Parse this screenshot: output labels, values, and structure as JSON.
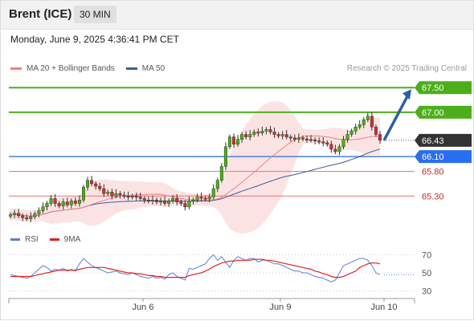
{
  "header": {
    "instrument": "Brent (ICE)",
    "timeframe": "30 MIN"
  },
  "datetime": "Monday, June 9, 2025 4:36:41 PM CET",
  "legend": {
    "ma20": {
      "label": "MA 20 + Bollinger Bands",
      "color": "#f08080"
    },
    "ma50": {
      "label": "MA 50",
      "color": "#3a5f9a"
    }
  },
  "credit": "Research © 2025 Trading Central",
  "rsi_legend": {
    "rsi": {
      "label": "RSI",
      "color": "#5b7fd6"
    },
    "ma9": {
      "label": "9MA",
      "color": "#e02020"
    }
  },
  "chart_data": [
    {
      "type": "candlestick",
      "title": "Brent (ICE)",
      "x_ticks": [
        "Jun 6",
        "Jun 9",
        "Jun 10"
      ],
      "price_levels": [
        {
          "value": 67.5,
          "label": "67.50",
          "kind": "resistance"
        },
        {
          "value": 67.0,
          "label": "67.00",
          "kind": "resistance"
        },
        {
          "value": 66.43,
          "label": "66.43",
          "kind": "current"
        },
        {
          "value": 66.1,
          "label": "66.10",
          "kind": "pivot"
        },
        {
          "value": 65.8,
          "label": "65.80",
          "kind": "support"
        },
        {
          "value": 65.3,
          "label": "65.30",
          "kind": "support"
        }
      ],
      "ylim": [
        64.8,
        67.65
      ],
      "close_path": [
        64.92,
        64.95,
        64.9,
        64.86,
        64.84,
        64.88,
        64.94,
        65.0,
        65.08,
        65.15,
        65.25,
        65.15,
        65.1,
        65.18,
        65.12,
        65.2,
        65.15,
        65.22,
        65.48,
        65.62,
        65.55,
        65.5,
        65.45,
        65.35,
        65.38,
        65.3,
        65.35,
        65.32,
        65.3,
        65.28,
        65.3,
        65.28,
        65.25,
        65.22,
        65.2,
        65.22,
        65.18,
        65.2,
        65.15,
        65.2,
        65.25,
        65.18,
        65.15,
        65.08,
        65.2,
        65.22,
        65.28,
        65.26,
        65.24,
        65.28,
        65.45,
        65.62,
        65.9,
        66.3,
        66.5,
        66.35,
        66.45,
        66.55,
        66.5,
        66.55,
        66.6,
        66.58,
        66.62,
        66.65,
        66.6,
        66.55,
        66.52,
        66.55,
        66.5,
        66.48,
        66.45,
        66.48,
        66.46,
        66.45,
        66.44,
        66.42,
        66.4,
        66.38,
        66.35,
        66.25,
        66.2,
        66.3,
        66.45,
        66.55,
        66.62,
        66.7,
        66.75,
        66.85,
        66.92,
        66.7,
        66.55,
        66.43
      ],
      "projection": {
        "from": 66.43,
        "to": 67.5
      }
    },
    {
      "type": "line",
      "title": "RSI",
      "ylim": [
        25,
        75
      ],
      "y_ticks": [
        70,
        50,
        30
      ],
      "series": [
        {
          "name": "RSI",
          "values": [
            48,
            47,
            46,
            45,
            44,
            46,
            50,
            54,
            58,
            56,
            52,
            54,
            53,
            55,
            52,
            54,
            52,
            60,
            66,
            62,
            58,
            56,
            54,
            52,
            50,
            51,
            52,
            50,
            49,
            48,
            50,
            48,
            46,
            45,
            44,
            46,
            44,
            45,
            43,
            48,
            50,
            46,
            44,
            42,
            55,
            54,
            56,
            58,
            60,
            66,
            70,
            64,
            68,
            62,
            56,
            64,
            68,
            66,
            64,
            66,
            66,
            62,
            64,
            64,
            62,
            60,
            60,
            58,
            56,
            54,
            52,
            52,
            50,
            50,
            48,
            46,
            45,
            44,
            42,
            40,
            42,
            50,
            58,
            60,
            62,
            64,
            66,
            66,
            64,
            58,
            50,
            48
          ]
        },
        {
          "name": "9MA",
          "values": [
            46,
            46,
            46,
            46,
            46,
            46,
            47,
            48,
            49,
            50,
            51,
            52,
            53,
            53,
            53,
            53,
            53,
            54,
            55,
            56,
            56,
            56,
            56,
            56,
            55,
            54,
            53,
            52,
            51,
            50,
            50,
            49,
            49,
            48,
            47,
            47,
            46,
            46,
            45,
            45,
            45,
            45,
            45,
            45,
            47,
            48,
            49,
            50,
            52,
            54,
            57,
            59,
            61,
            62,
            63,
            63,
            64,
            64,
            64,
            64,
            65,
            65,
            65,
            64,
            64,
            63,
            62,
            61,
            60,
            59,
            58,
            57,
            56,
            55,
            54,
            52,
            51,
            49,
            48,
            46,
            45,
            45,
            46,
            48,
            50,
            52,
            56,
            58,
            60,
            61,
            61,
            60
          ]
        }
      ]
    }
  ]
}
